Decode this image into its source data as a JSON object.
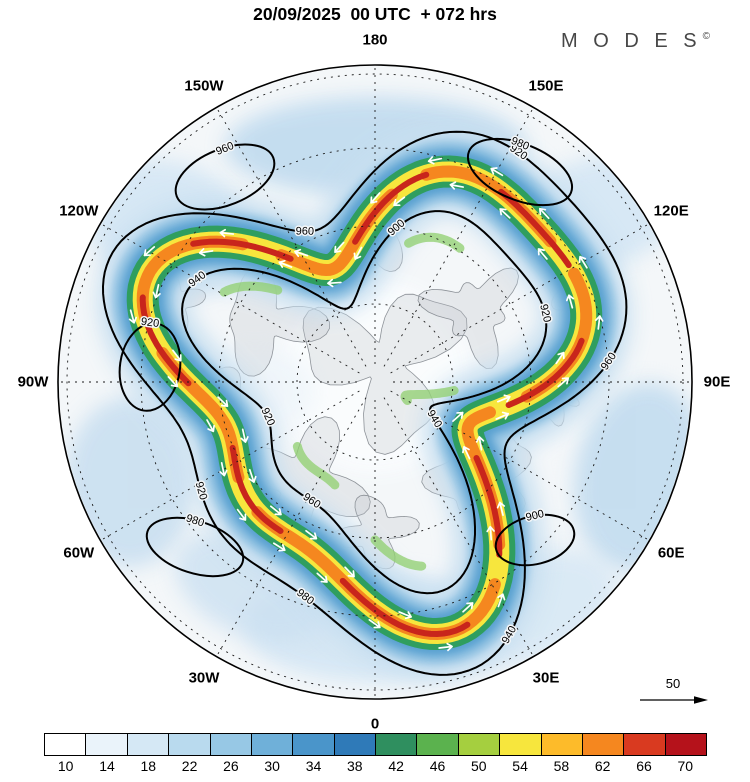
{
  "header": {
    "title": "20/09/2025  00 UTC  + 072 hrs",
    "brand": "M O D E S",
    "brand_mark": "©"
  },
  "map": {
    "longitude_labels": [
      {
        "text": "180",
        "lon": 180
      },
      {
        "text": "150W",
        "lon": -150
      },
      {
        "text": "150E",
        "lon": 150
      },
      {
        "text": "120W",
        "lon": -120
      },
      {
        "text": "120E",
        "lon": 120
      },
      {
        "text": "90W",
        "lon": -90
      },
      {
        "text": "90E",
        "lon": 90
      },
      {
        "text": "60W",
        "lon": -60
      },
      {
        "text": "60E",
        "lon": 60
      },
      {
        "text": "30W",
        "lon": -30
      },
      {
        "text": "30E",
        "lon": 30
      },
      {
        "text": "0",
        "lon": 0
      }
    ],
    "wind_reference": "50",
    "contour_labels_on_outer": [
      {
        "text": "960",
        "lon": -155
      },
      {
        "text": "920",
        "lon": -58
      },
      {
        "text": "980",
        "lon": -18
      },
      {
        "text": "940",
        "lon": 28
      },
      {
        "text": "960",
        "lon": 95
      },
      {
        "text": "920",
        "lon": 148
      }
    ],
    "contour_labels_on_inner": [
      {
        "text": "940",
        "lon": -120
      },
      {
        "text": "920",
        "lon": -72
      },
      {
        "text": "960",
        "lon": -28
      },
      {
        "text": "900",
        "lon": 172
      },
      {
        "text": "920",
        "lon": 112
      },
      {
        "text": "940",
        "lon": 58
      }
    ],
    "closed_loop_labels": [
      "960",
      "980",
      "980",
      "900",
      "920"
    ]
  },
  "colorbar": {
    "ticks": [
      "10",
      "14",
      "18",
      "22",
      "26",
      "30",
      "34",
      "38",
      "42",
      "46",
      "50",
      "54",
      "58",
      "62",
      "66",
      "70"
    ],
    "colors": [
      "#ffffff",
      "#eaf3fa",
      "#d5e8f5",
      "#b9daee",
      "#97c8e5",
      "#6fb0d9",
      "#4a95ca",
      "#2f7ab8",
      "#2f8f5f",
      "#5bb24e",
      "#a5cf3f",
      "#f7e63d",
      "#fdbb2a",
      "#f5871f",
      "#d93a20",
      "#b5121b"
    ]
  },
  "chart_data": {
    "type": "heatmap",
    "title": "20/09/2025 00 UTC + 072 hrs",
    "description": "MODES Northern Hemisphere polar stereographic forecast map (+072 h): upper-level wind speed shaded in filled contours, geopotential height contours (dam) in black, white wind-direction arrows along the jet stream, dashed latitude/longitude graticule, gray coastlines.",
    "projection": "north_polar_stereographic",
    "shading_variable": "wind speed",
    "shading_levels": [
      10,
      14,
      18,
      22,
      26,
      30,
      34,
      38,
      42,
      46,
      50,
      54,
      58,
      62,
      66,
      70
    ],
    "shading_colors": [
      "#ffffff",
      "#eaf3fa",
      "#d5e8f5",
      "#b9daee",
      "#97c8e5",
      "#6fb0d9",
      "#4a95ca",
      "#2f7ab8",
      "#2f8f5f",
      "#5bb24e",
      "#a5cf3f",
      "#f7e63d",
      "#fdbb2a",
      "#f5871f",
      "#d93a20",
      "#b5121b"
    ],
    "contour_variable": "geopotential height (dam)",
    "contour_values_visible": [
      900,
      920,
      940,
      960,
      980
    ],
    "longitude_labels": [
      "180",
      "150W",
      "150E",
      "120W",
      "120E",
      "90W",
      "90E",
      "60W",
      "60E",
      "30W",
      "30E",
      "0"
    ],
    "wind_reference_arrow": 50,
    "legend_position": "bottom"
  }
}
